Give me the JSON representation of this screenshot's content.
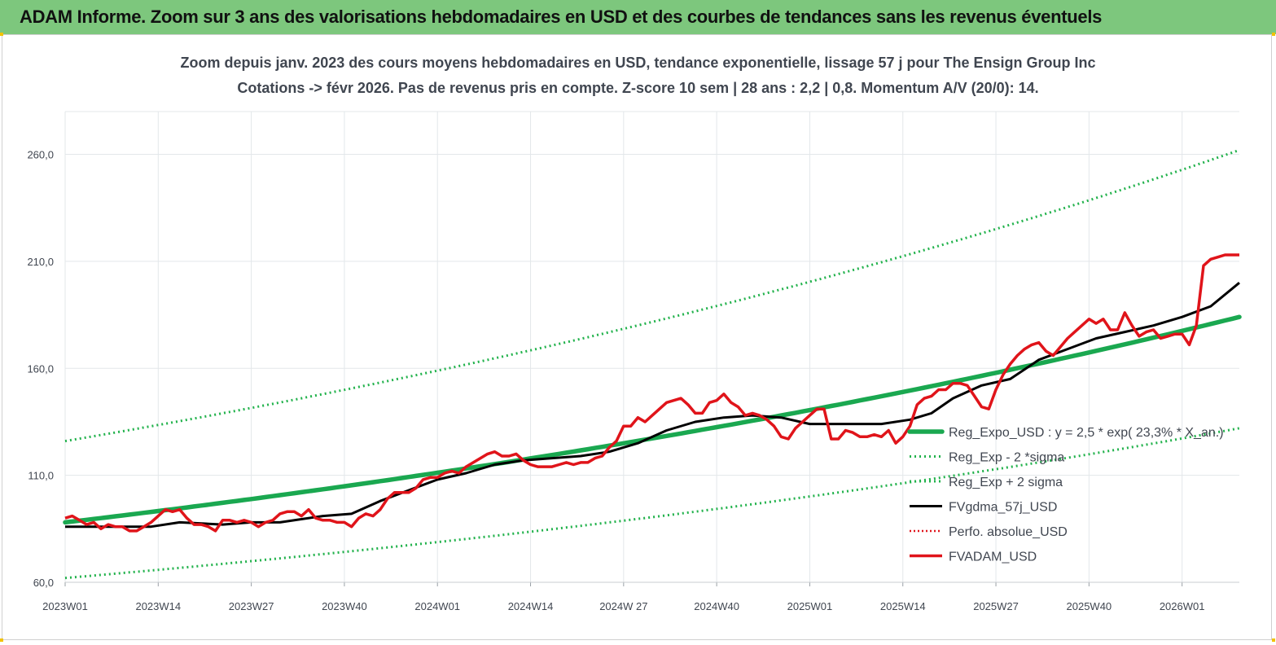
{
  "banner": {
    "title": "ADAM Informe. Zoom sur 3 ans des valorisations hebdomadaires en USD et des courbes de tendances sans les revenus éventuels"
  },
  "colors": {
    "banner_bg": "#7dc77d",
    "trend_green": "#1aa850",
    "sigma_dotted_green": "#22b24c",
    "smoothed_black": "#000000",
    "price_red": "#e0141a",
    "perfo_dotted_red": "#e0141a"
  },
  "chart_data": {
    "type": "line",
    "title": "Zoom depuis janv. 2023 des cours moyens hebdomadaires en USD, tendance exponentielle, lissage 57 j pour The Ensign Group Inc",
    "subtitle": "Cotations -> févr 2026.  Pas de revenus pris en compte. Z-score 10 sem  | 28 ans : 2,2 | 0,8. Momentum A/V (20/0): 14.",
    "xlabel": "",
    "ylabel": "",
    "ylim": [
      60,
      280
    ],
    "yticks": [
      "60,0",
      "110,0",
      "160,0",
      "210,0",
      "260,0"
    ],
    "ytick_values": [
      60,
      110,
      160,
      210,
      260
    ],
    "xticks": [
      "2023W01",
      "2023W14",
      "2023W27",
      "2023W40",
      "2024W01",
      "2024W14",
      "2024W 27",
      "2024W40",
      "2025W01",
      "2025W14",
      "2025W27",
      "2025W40",
      "2026W01"
    ],
    "xtick_weeks": [
      0,
      13,
      26,
      39,
      52,
      65,
      78,
      91,
      104,
      117,
      130,
      143,
      156
    ],
    "week_range": [
      0,
      164
    ],
    "grid": true,
    "legend_position": "lower-right",
    "series": [
      {
        "name": "Reg_Expo_USD : y = 2,5  * exp( 23,3% *  X_an.)",
        "style": "trend",
        "x": [
          0,
          164
        ],
        "y": [
          88,
          184
        ],
        "growth": "exponential"
      },
      {
        "name": "Reg_Exp - 2 *sigma",
        "style": "sigma",
        "x": [
          0,
          164
        ],
        "y": [
          62,
          132
        ],
        "growth": "exponential"
      },
      {
        "name": "Reg_Exp + 2 sigma",
        "style": "sigma",
        "x": [
          0,
          164
        ],
        "y": [
          126,
          262
        ],
        "growth": "exponential"
      },
      {
        "name": "FVgdma_57j_USD",
        "style": "smooth",
        "x": [
          0,
          6,
          12,
          16,
          22,
          26,
          30,
          36,
          40,
          44,
          48,
          52,
          56,
          60,
          64,
          68,
          72,
          76,
          80,
          84,
          88,
          92,
          96,
          100,
          104,
          110,
          114,
          118,
          121,
          124,
          128,
          132,
          136,
          140,
          144,
          148,
          152,
          156,
          160,
          164
        ],
        "y": [
          86,
          86,
          86,
          88,
          87,
          88,
          88,
          91,
          92,
          98,
          103,
          108,
          111,
          115,
          117,
          118,
          119,
          121,
          125,
          131,
          135,
          137,
          138,
          137,
          134,
          134,
          134,
          136,
          139,
          146,
          152,
          155,
          164,
          169,
          174,
          177,
          180,
          184,
          189,
          200
        ]
      },
      {
        "name": "Perfo. absolue_USD",
        "style": "perfo",
        "x": [],
        "y": []
      },
      {
        "name": "FVADAM_USD",
        "style": "price",
        "x": [
          0,
          1,
          2,
          3,
          4,
          5,
          6,
          7,
          8,
          9,
          10,
          11,
          12,
          13,
          14,
          15,
          16,
          17,
          18,
          19,
          20,
          21,
          22,
          23,
          24,
          25,
          26,
          27,
          28,
          29,
          30,
          31,
          32,
          33,
          34,
          35,
          36,
          37,
          38,
          39,
          40,
          41,
          42,
          43,
          44,
          45,
          46,
          47,
          48,
          49,
          50,
          51,
          52,
          53,
          54,
          55,
          56,
          57,
          58,
          59,
          60,
          61,
          62,
          63,
          64,
          65,
          66,
          67,
          68,
          69,
          70,
          71,
          72,
          73,
          74,
          75,
          76,
          77,
          78,
          79,
          80,
          81,
          82,
          83,
          84,
          85,
          86,
          87,
          88,
          89,
          90,
          91,
          92,
          93,
          94,
          95,
          96,
          97,
          98,
          99,
          100,
          101,
          102,
          103,
          104,
          105,
          106,
          107,
          108,
          109,
          110,
          111,
          112,
          113,
          114,
          115,
          116,
          117,
          118,
          119,
          120,
          121,
          122,
          123,
          124,
          125,
          126,
          127,
          128,
          129,
          130,
          131,
          132,
          133,
          134,
          135,
          136,
          137,
          138,
          139,
          140,
          141,
          142,
          143,
          144,
          145,
          146,
          147,
          148,
          149,
          150,
          151,
          152,
          153,
          154,
          155,
          156,
          157,
          158,
          159,
          160,
          161,
          162,
          163,
          164
        ],
        "y": [
          90,
          91,
          89,
          87,
          88,
          85,
          87,
          86,
          86,
          84,
          84,
          86,
          88,
          91,
          94,
          93,
          94,
          90,
          87,
          87,
          86,
          84,
          89,
          89,
          88,
          89,
          88,
          86,
          88,
          89,
          92,
          93,
          93,
          91,
          94,
          90,
          89,
          89,
          88,
          88,
          86,
          90,
          92,
          91,
          94,
          99,
          102,
          102,
          102,
          104,
          108,
          109,
          109,
          111,
          112,
          111,
          114,
          116,
          118,
          120,
          121,
          119,
          119,
          120,
          117,
          115,
          114,
          114,
          114,
          115,
          116,
          115,
          116,
          116,
          118,
          119,
          123,
          126,
          133,
          133,
          137,
          135,
          138,
          141,
          144,
          145,
          146,
          143,
          139,
          139,
          144,
          145,
          148,
          144,
          142,
          138,
          139,
          138,
          136,
          133,
          128,
          127,
          132,
          135,
          138,
          141,
          141,
          127,
          127,
          131,
          130,
          128,
          128,
          129,
          128,
          131,
          125,
          128,
          133,
          143,
          146,
          147,
          150,
          150,
          153,
          153,
          152,
          147,
          142,
          141,
          150,
          157,
          162,
          166,
          169,
          171,
          172,
          168,
          166,
          170,
          174,
          177,
          180,
          183,
          181,
          183,
          178,
          178,
          186,
          180,
          175,
          177,
          178,
          174,
          175,
          176,
          176,
          171,
          180,
          208,
          211,
          212,
          213,
          213,
          213
        ]
      }
    ]
  }
}
